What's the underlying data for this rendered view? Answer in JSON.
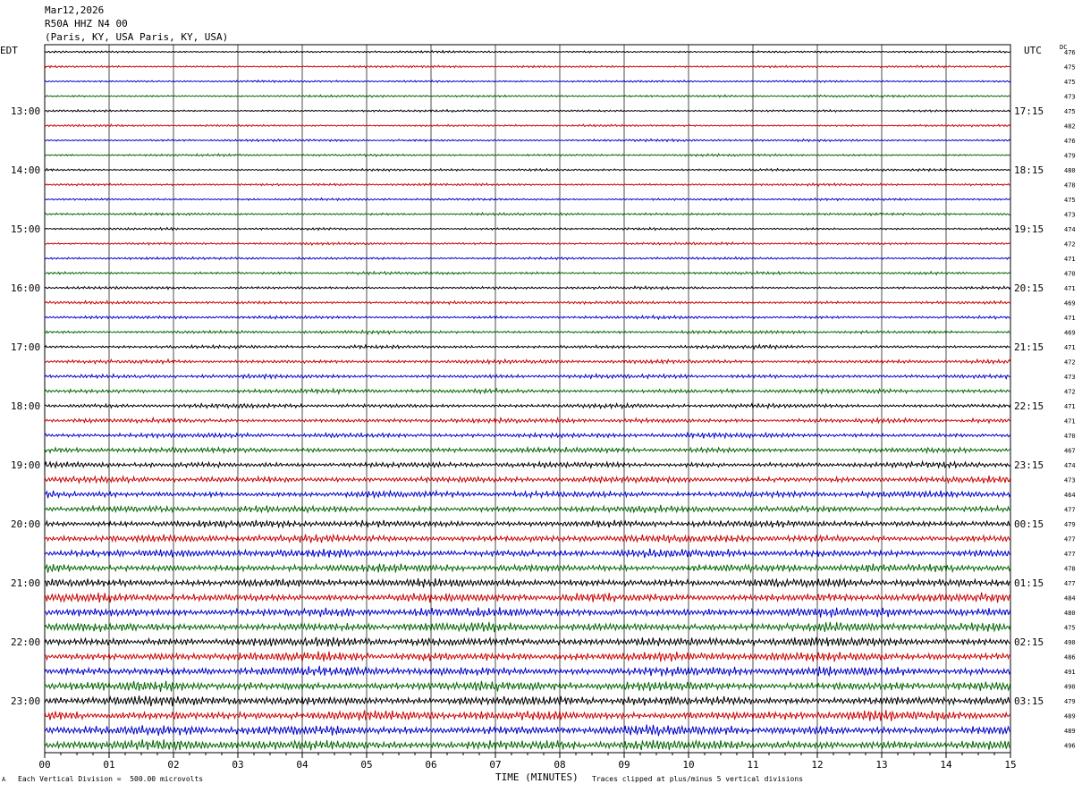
{
  "header": {
    "date": "Mar12,2026",
    "station": "R50A HHZ N4 00",
    "location": "(Paris, KY, USA Paris, KY, USA)"
  },
  "labels": {
    "left_timezone": "EDT",
    "right_timezone": "UTC",
    "dc_header": "DC",
    "xlabel": "TIME (MINUTES)",
    "footer_left": "Each Vertical Division =  500.00 microvolts",
    "footer_right": "Traces clipped at plus/minus 5 vertical divisions",
    "corner_mark": "A"
  },
  "colors": {
    "black": "#000000",
    "red": "#cc0000",
    "blue": "#0000cc",
    "green": "#006600",
    "grid": "#000000"
  },
  "chart_data": {
    "type": "line",
    "title": "",
    "xlabel": "TIME (MINUTES)",
    "xlim": [
      0,
      15
    ],
    "x_ticks": [
      "00",
      "01",
      "02",
      "03",
      "04",
      "05",
      "06",
      "07",
      "08",
      "09",
      "10",
      "11",
      "12",
      "13",
      "14",
      "15"
    ],
    "rows_per_hour": 4,
    "trace_colors": [
      "black",
      "red",
      "blue",
      "green"
    ],
    "left_hour_labels": [
      {
        "row": 4,
        "label": "13:00"
      },
      {
        "row": 8,
        "label": "14:00"
      },
      {
        "row": 12,
        "label": "15:00"
      },
      {
        "row": 16,
        "label": "16:00"
      },
      {
        "row": 20,
        "label": "17:00"
      },
      {
        "row": 24,
        "label": "18:00"
      },
      {
        "row": 28,
        "label": "19:00"
      },
      {
        "row": 32,
        "label": "20:00"
      },
      {
        "row": 36,
        "label": "21:00"
      },
      {
        "row": 40,
        "label": "22:00"
      },
      {
        "row": 44,
        "label": "23:00"
      }
    ],
    "right_hour_labels": [
      {
        "row": 4,
        "label": "17:15"
      },
      {
        "row": 8,
        "label": "18:15"
      },
      {
        "row": 12,
        "label": "19:15"
      },
      {
        "row": 16,
        "label": "20:15"
      },
      {
        "row": 20,
        "label": "21:15"
      },
      {
        "row": 24,
        "label": "22:15"
      },
      {
        "row": 28,
        "label": "23:15"
      },
      {
        "row": 32,
        "label": "00:15"
      },
      {
        "row": 36,
        "label": "01:15"
      },
      {
        "row": 40,
        "label": "02:15"
      },
      {
        "row": 44,
        "label": "03:15"
      }
    ],
    "dc_offsets": [
      476,
      475,
      475,
      473,
      475,
      482,
      476,
      479,
      480,
      478,
      475,
      473,
      474,
      472,
      471,
      470,
      471,
      469,
      471,
      469,
      471,
      472,
      473,
      472,
      471,
      471,
      470,
      467,
      474,
      473,
      464,
      477,
      479,
      477,
      477,
      478,
      477,
      484,
      480,
      475,
      490,
      486,
      491,
      490,
      479,
      489,
      489,
      496
    ],
    "row_amplitudes": [
      1.0,
      1.0,
      1.0,
      1.1,
      1.0,
      1.0,
      1.1,
      1.1,
      1.1,
      1.1,
      1.1,
      1.2,
      1.1,
      1.2,
      1.2,
      1.3,
      1.3,
      1.4,
      1.4,
      1.5,
      1.6,
      1.8,
      1.9,
      2.0,
      2.0,
      2.2,
      2.3,
      2.5,
      2.6,
      2.9,
      3.0,
      3.1,
      3.3,
      3.6,
      3.8,
      3.8,
      4.0,
      4.1,
      4.2,
      4.2,
      4.3,
      4.3,
      4.4,
      4.4,
      4.5,
      4.5,
      4.6,
      4.7
    ]
  }
}
